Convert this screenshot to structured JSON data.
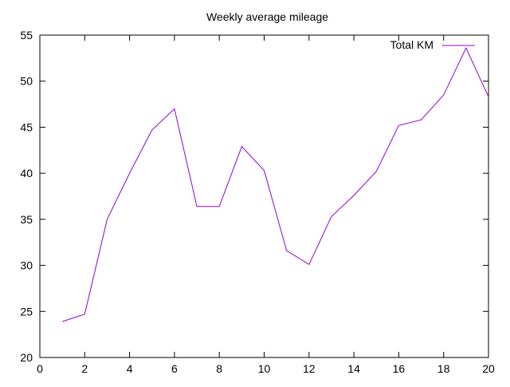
{
  "chart_data": {
    "type": "line",
    "title": "Weekly average mileage",
    "xlabel": "",
    "ylabel": "",
    "xlim": [
      0,
      20
    ],
    "ylim": [
      20,
      55
    ],
    "x_ticks": [
      0,
      2,
      4,
      6,
      8,
      10,
      12,
      14,
      16,
      18,
      20
    ],
    "y_ticks": [
      20,
      25,
      30,
      35,
      40,
      45,
      50,
      55
    ],
    "grid": false,
    "legend_position": "top-right",
    "series": [
      {
        "name": "Total KM",
        "color": "#9400d3",
        "x": [
          1,
          2,
          3,
          4,
          5,
          6,
          7,
          8,
          9,
          10,
          11,
          12,
          13,
          14,
          15,
          16,
          17,
          18,
          19,
          20
        ],
        "values": [
          23.9,
          24.7,
          35.0,
          40.0,
          44.7,
          47.0,
          36.4,
          36.4,
          42.9,
          40.3,
          31.6,
          30.1,
          35.3,
          37.6,
          40.2,
          45.2,
          45.8,
          48.5,
          53.6,
          48.3
        ]
      }
    ]
  }
}
